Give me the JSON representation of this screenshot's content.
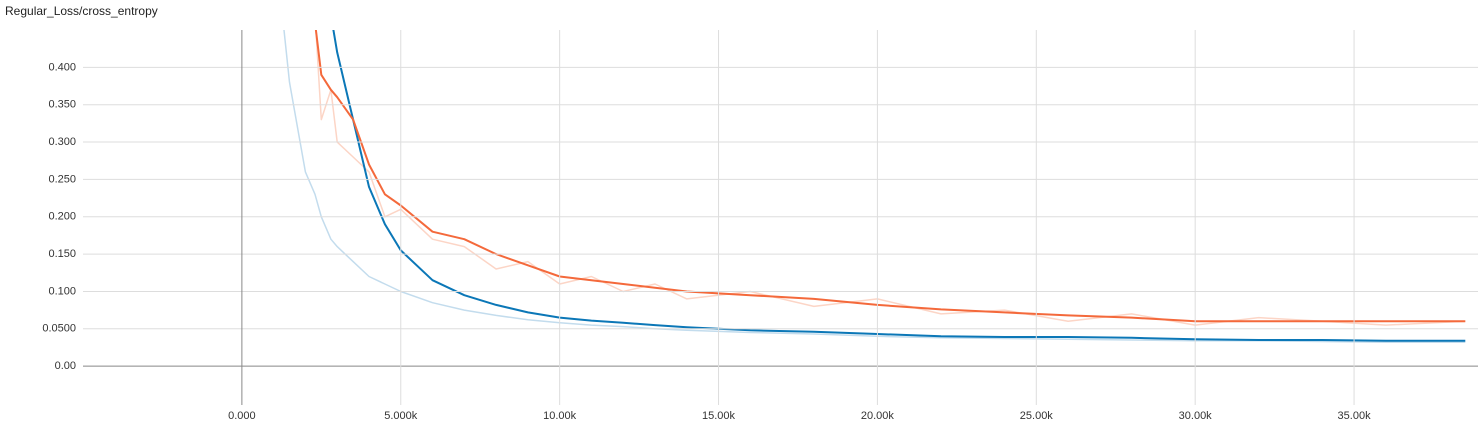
{
  "chart_data": {
    "type": "line",
    "title": "Regular_Loss/cross_entropy",
    "x": [
      1300,
      1500,
      2000,
      2300,
      2500,
      2800,
      3000,
      3500,
      4000,
      4500,
      5000,
      6000,
      7000,
      8000,
      9000,
      10000,
      11000,
      12000,
      13000,
      14000,
      16000,
      18000,
      20000,
      22000,
      24000,
      26000,
      28000,
      30000,
      32000,
      34000,
      36000,
      38500
    ],
    "series": [
      {
        "color": "#c3dced",
        "values": [
          0.46,
          0.38,
          0.26,
          0.23,
          0.2,
          0.17,
          0.16,
          0.14,
          0.12,
          0.11,
          0.1,
          0.085,
          0.075,
          0.068,
          0.062,
          0.058,
          0.055,
          0.053,
          0.05,
          0.048,
          0.045,
          0.043,
          0.04,
          0.038,
          0.037,
          0.036,
          0.035,
          0.034,
          0.034,
          0.033,
          0.032,
          0.032
        ]
      },
      {
        "color": "#fcd5c6",
        "values": [
          null,
          null,
          null,
          0.47,
          0.33,
          0.37,
          0.3,
          0.28,
          0.26,
          0.2,
          0.21,
          0.17,
          0.16,
          0.13,
          0.14,
          0.11,
          0.12,
          0.1,
          0.11,
          0.09,
          0.1,
          0.08,
          0.09,
          0.07,
          0.075,
          0.06,
          0.07,
          0.055,
          0.065,
          0.06,
          0.055,
          0.06
        ]
      },
      {
        "color": "#0b77b7",
        "values": [
          null,
          null,
          null,
          null,
          null,
          0.47,
          0.42,
          0.33,
          0.24,
          0.19,
          0.155,
          0.115,
          0.095,
          0.082,
          0.072,
          0.065,
          0.061,
          0.058,
          0.055,
          0.052,
          0.048,
          0.046,
          0.043,
          0.04,
          0.039,
          0.039,
          0.038,
          0.036,
          0.035,
          0.035,
          0.034,
          0.034
        ]
      },
      {
        "color": "#f4693b",
        "values": [
          null,
          null,
          null,
          0.46,
          0.39,
          0.37,
          0.36,
          0.33,
          0.27,
          0.23,
          0.215,
          0.18,
          0.17,
          0.15,
          0.135,
          0.12,
          0.115,
          0.11,
          0.105,
          0.1,
          0.095,
          0.09,
          0.082,
          0.076,
          0.072,
          0.068,
          0.065,
          0.06,
          0.06,
          0.06,
          0.06,
          0.06
        ]
      }
    ],
    "xlim": [
      -5000,
      38900
    ],
    "ylim": [
      -0.052,
      0.45
    ],
    "xticks": [
      {
        "value": 0,
        "label": "0.000"
      },
      {
        "value": 5000,
        "label": "5.000k"
      },
      {
        "value": 10000,
        "label": "10.00k"
      },
      {
        "value": 15000,
        "label": "15.00k"
      },
      {
        "value": 20000,
        "label": "20.00k"
      },
      {
        "value": 25000,
        "label": "25.00k"
      },
      {
        "value": 30000,
        "label": "30.00k"
      },
      {
        "value": 35000,
        "label": "35.00k"
      }
    ],
    "yticks": [
      {
        "value": 0,
        "label": "0.00"
      },
      {
        "value": 0.05,
        "label": "0.0500"
      },
      {
        "value": 0.1,
        "label": "0.100"
      },
      {
        "value": 0.15,
        "label": "0.150"
      },
      {
        "value": 0.2,
        "label": "0.200"
      },
      {
        "value": 0.25,
        "label": "0.250"
      },
      {
        "value": 0.3,
        "label": "0.300"
      },
      {
        "value": 0.35,
        "label": "0.350"
      },
      {
        "value": 0.4,
        "label": "0.400"
      }
    ],
    "grid": true
  }
}
